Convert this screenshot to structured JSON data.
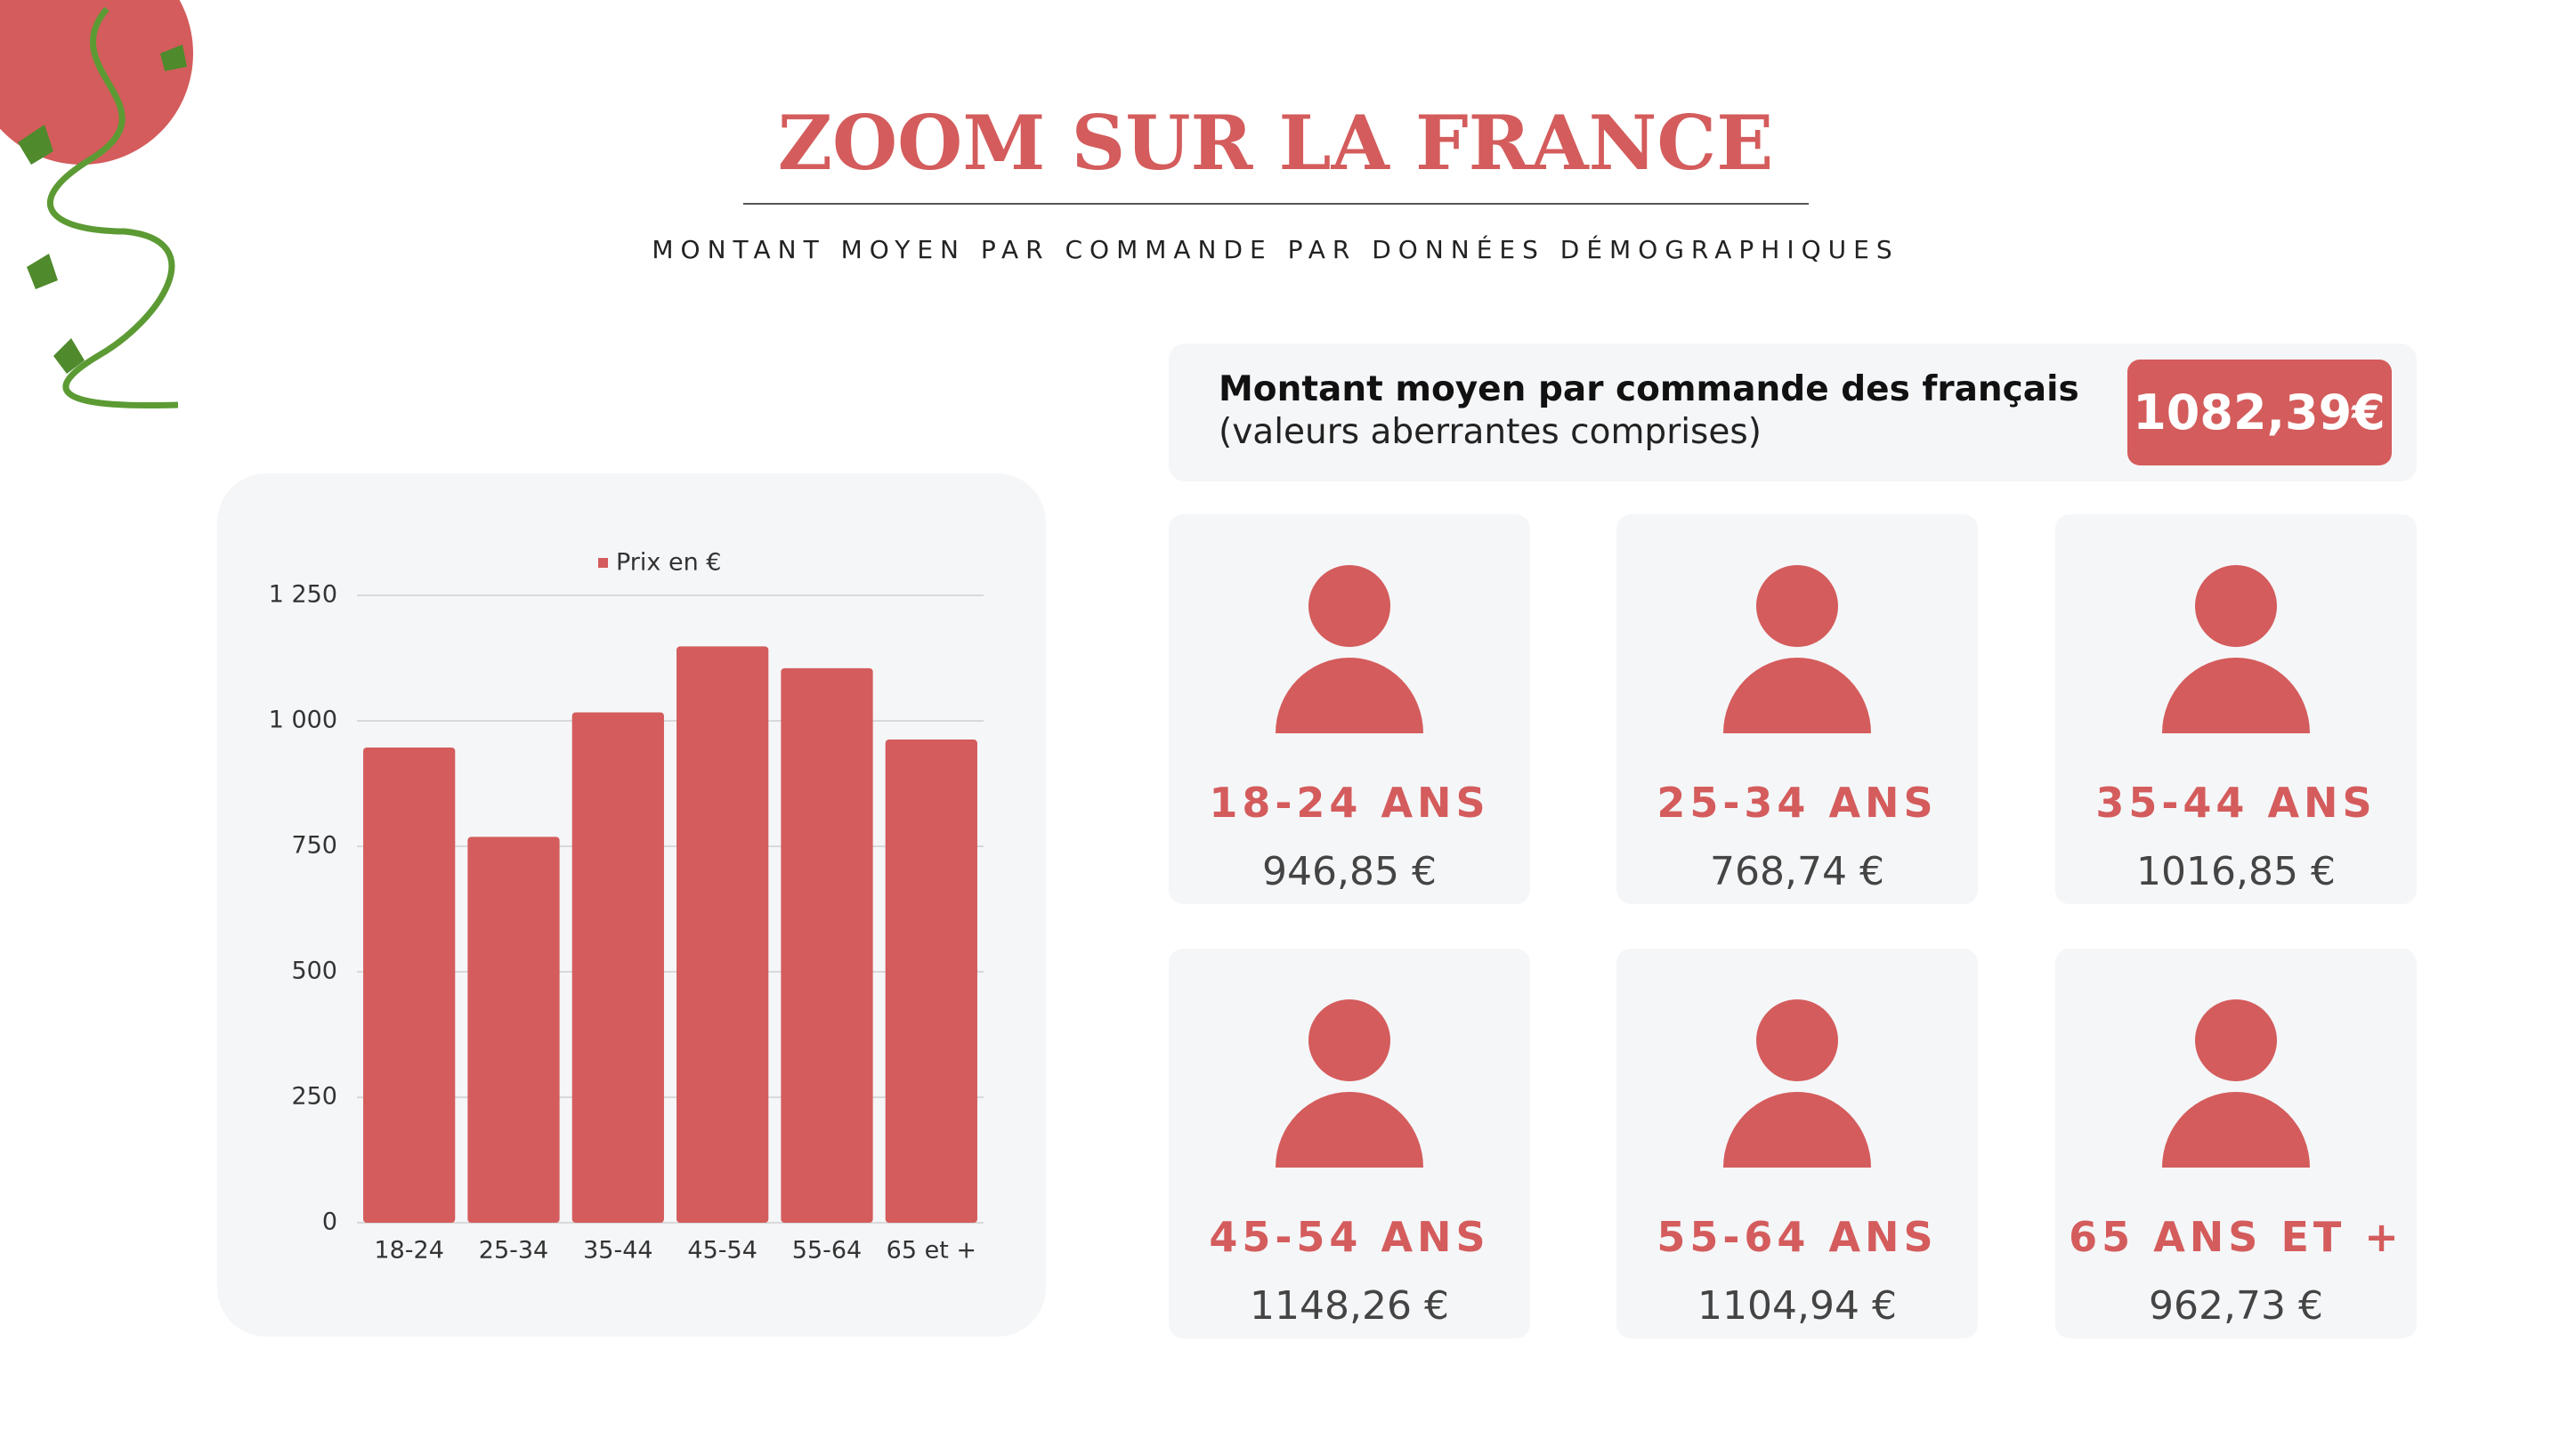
{
  "title": "ZOOM SUR LA FRANCE",
  "subtitle": "MONTANT MOYEN PAR COMMANDE PAR DONNÉES DÉMOGRAPHIQUES",
  "summary": {
    "label": "Montant moyen par commande des français",
    "note": "(valeurs aberrantes comprises)",
    "value": "1082,39€"
  },
  "cards": [
    {
      "label": "18-24 ANS",
      "value": "946,85 €"
    },
    {
      "label": "25-34 ANS",
      "value": "768,74 €"
    },
    {
      "label": "35-44 ANS",
      "value": "1016,85 €"
    },
    {
      "label": "45-54 ANS",
      "value": "1148,26 €"
    },
    {
      "label": "55-64 ANS",
      "value": "1104,94 €"
    },
    {
      "label": "65 ANS ET +",
      "value": "962,73 €"
    }
  ],
  "chart_data": {
    "type": "bar",
    "categories": [
      "18-24",
      "25-34",
      "35-44",
      "45-54",
      "55-64",
      "65 et +"
    ],
    "series": [
      {
        "name": "Prix en €",
        "color": "#d45c5c",
        "values": [
          946.85,
          768.74,
          1016.85,
          1148.26,
          1104.94,
          962.73
        ]
      }
    ],
    "ylim": [
      0,
      1250
    ],
    "yticks": [
      0,
      250,
      500,
      750,
      {
        "value": 1000,
        "label": "1 000"
      },
      {
        "value": 1250,
        "label": "1 250"
      }
    ],
    "grid": true,
    "legend": "top"
  }
}
